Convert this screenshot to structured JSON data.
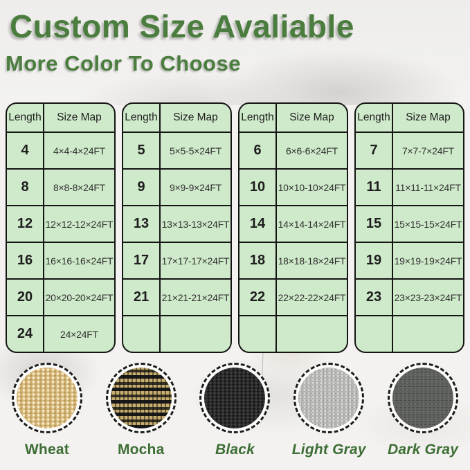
{
  "header": {
    "title": "Custom Size Avaliable",
    "subtitle": "More Color To Choose"
  },
  "size_tables": {
    "col_headers": [
      "Length",
      "Size Map"
    ],
    "tables": [
      {
        "rows": [
          {
            "length": "4",
            "size": "4×4-4×24FT"
          },
          {
            "length": "8",
            "size": "8×8-8×24FT"
          },
          {
            "length": "12",
            "size": "12×12-12×24FT"
          },
          {
            "length": "16",
            "size": "16×16-16×24FT"
          },
          {
            "length": "20",
            "size": "20×20-20×24FT"
          },
          {
            "length": "24",
            "size": "24×24FT"
          }
        ]
      },
      {
        "rows": [
          {
            "length": "5",
            "size": "5×5-5×24FT"
          },
          {
            "length": "9",
            "size": "9×9-9×24FT"
          },
          {
            "length": "13",
            "size": "13×13-13×24FT"
          },
          {
            "length": "17",
            "size": "17×17-17×24FT"
          },
          {
            "length": "21",
            "size": "21×21-21×24FT"
          },
          {
            "length": "",
            "size": ""
          }
        ]
      },
      {
        "rows": [
          {
            "length": "6",
            "size": "6×6-6×24FT"
          },
          {
            "length": "10",
            "size": "10×10-10×24FT"
          },
          {
            "length": "14",
            "size": "14×14-14×24FT"
          },
          {
            "length": "18",
            "size": "18×18-18×24FT"
          },
          {
            "length": "22",
            "size": "22×22-22×24FT"
          },
          {
            "length": "",
            "size": ""
          }
        ]
      },
      {
        "rows": [
          {
            "length": "7",
            "size": "7×7-7×24FT"
          },
          {
            "length": "11",
            "size": "11×11-11×24FT"
          },
          {
            "length": "15",
            "size": "15×15-15×24FT"
          },
          {
            "length": "19",
            "size": "19×19-19×24FT"
          },
          {
            "length": "23",
            "size": "23×23-23×24FT"
          },
          {
            "length": "",
            "size": ""
          }
        ]
      }
    ]
  },
  "swatches": {
    "items": [
      {
        "label": "Wheat",
        "color": "#d8ba7c"
      },
      {
        "label": "Mocha",
        "color": "#8a7445"
      },
      {
        "label": "Black",
        "color": "#2c2d2c"
      },
      {
        "label": "Light Gray",
        "color": "#b7b7b5"
      },
      {
        "label": "Dark Gray",
        "color": "#5d605b"
      }
    ]
  },
  "theme": {
    "accent_green": "#4b7d3f",
    "label_green": "#3d6e35",
    "table_fill": "#cfeaca",
    "table_border": "#141414"
  }
}
